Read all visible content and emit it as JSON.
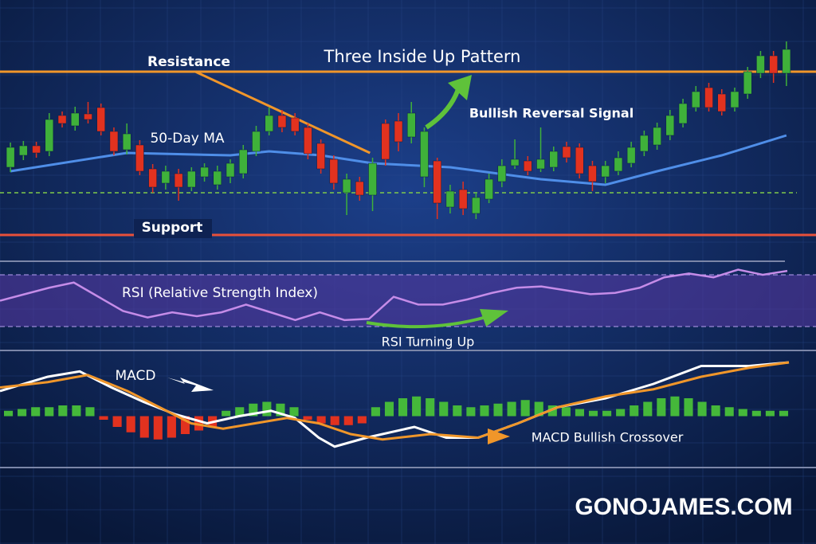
{
  "chart_data": [
    {
      "type": "candlestick",
      "title": "Three Inside Up Pattern",
      "xlim": [
        -0.5,
        60.5
      ],
      "ylim": [
        0,
        260
      ],
      "up_color": "#3fb13a",
      "down_color": "#e2321f",
      "open": [
        90,
        105,
        117,
        110,
        155,
        142,
        157,
        165,
        135,
        112,
        118,
        88,
        70,
        82,
        65,
        78,
        68,
        78,
        82,
        110,
        135,
        155,
        152,
        140,
        120,
        100,
        58,
        72,
        55,
        145,
        148,
        128,
        78,
        98,
        40,
        62,
        32,
        50,
        72,
        92,
        98,
        88,
        90,
        116,
        115,
        92,
        78,
        85,
        95,
        110,
        118,
        130,
        145,
        165,
        190,
        182,
        165,
        182,
        208,
        230,
        208
      ],
      "high": [
        121,
        123,
        122,
        158,
        160,
        166,
        172,
        170,
        140,
        145,
        124,
        94,
        92,
        88,
        90,
        95,
        92,
        100,
        118,
        142,
        165,
        162,
        158,
        145,
        125,
        105,
        82,
        78,
        102,
        150,
        158,
        172,
        140,
        102,
        68,
        72,
        58,
        82,
        100,
        125,
        104,
        140,
        116,
        122,
        120,
        98,
        98,
        110,
        122,
        136,
        146,
        162,
        176,
        192,
        196,
        188,
        190,
        216,
        236,
        236,
        248
      ],
      "low": [
        84,
        99,
        102,
        104,
        140,
        136,
        145,
        130,
        105,
        106,
        80,
        58,
        62,
        48,
        60,
        72,
        62,
        70,
        76,
        104,
        130,
        134,
        130,
        100,
        82,
        62,
        30,
        48,
        35,
        92,
        110,
        120,
        65,
        25,
        32,
        30,
        25,
        45,
        65,
        88,
        80,
        84,
        85,
        96,
        76,
        60,
        70,
        80,
        90,
        104,
        112,
        124,
        140,
        160,
        160,
        155,
        160,
        176,
        202,
        196,
        192
      ],
      "close": [
        115,
        117,
        108,
        150,
        145,
        158,
        150,
        135,
        110,
        132,
        85,
        65,
        85,
        65,
        85,
        90,
        85,
        95,
        112,
        135,
        155,
        140,
        135,
        107,
        88,
        70,
        75,
        55,
        95,
        100,
        122,
        158,
        135,
        45,
        60,
        38,
        52,
        75,
        92,
        100,
        85,
        100,
        110,
        102,
        82,
        72,
        92,
        102,
        115,
        130,
        140,
        155,
        170,
        185,
        165,
        160,
        185,
        210,
        230,
        208,
        238
      ],
      "series": [
        {
          "name": "50-Day MA",
          "color": "#4f8ee8",
          "x": [
            0,
            9,
            17,
            20,
            24,
            28,
            34,
            41,
            46,
            50,
            55,
            60
          ],
          "values": [
            85,
            108,
            105,
            110,
            105,
            95,
            90,
            75,
            68,
            85,
            105,
            130
          ]
        }
      ],
      "levels": [
        {
          "name": "Resistance",
          "value": 210,
          "color": "#f0962a"
        },
        {
          "name": "Support",
          "value": 5,
          "color": "#e8503a"
        }
      ],
      "dashed_levels": [
        58
      ],
      "trendline": {
        "color": "#f0962a",
        "x": [
          14.3,
          27.8
        ],
        "values": [
          210,
          108
        ]
      },
      "annotations": [
        "Bullish Reversal Signal"
      ]
    },
    {
      "type": "line",
      "title": "RSI (Relative Strength Index)",
      "ylim": [
        0,
        100
      ],
      "band": [
        30,
        70
      ],
      "color": "#c58ce8",
      "values": [
        50,
        55,
        60,
        64,
        53,
        42,
        37,
        41,
        38,
        41,
        47,
        41,
        35,
        41,
        35,
        36,
        53,
        47,
        47,
        51,
        56,
        60,
        61,
        58,
        55,
        56,
        60,
        68,
        71,
        68,
        74,
        70,
        73
      ],
      "annotations": [
        "RSI Turning Up"
      ]
    },
    {
      "type": "macd",
      "title": "MACD",
      "xlim": [
        0,
        1024
      ],
      "ylim": [
        -3,
        3
      ],
      "up_color": "#45b83a",
      "down_color": "#e2321f",
      "histogram": [
        0.3,
        0.4,
        0.5,
        0.5,
        0.6,
        0.6,
        0.5,
        -0.2,
        -0.6,
        -0.9,
        -1.2,
        -1.3,
        -1.2,
        -1.0,
        -0.8,
        -0.6,
        0.3,
        0.5,
        0.7,
        0.8,
        0.7,
        0.5,
        -0.2,
        -0.4,
        -0.5,
        -0.5,
        -0.4,
        0.5,
        0.8,
        1.0,
        1.1,
        1.0,
        0.8,
        0.6,
        0.5,
        0.6,
        0.7,
        0.8,
        0.9,
        0.8,
        0.6,
        0.5,
        0.4,
        0.3,
        0.3,
        0.4,
        0.6,
        0.8,
        1.0,
        1.1,
        1.0,
        0.8,
        0.6,
        0.5,
        0.4,
        0.3,
        0.3,
        0.3
      ],
      "series": [
        {
          "color": "#ffffff",
          "x": [
            0,
            60,
            100,
            140,
            180,
            220,
            260,
            300,
            340,
            370,
            400,
            420,
            460,
            520,
            560,
            600,
            650,
            700,
            760,
            820,
            880,
            940,
            990
          ],
          "values": [
            1.4,
            2.2,
            2.5,
            1.6,
            0.8,
            0.1,
            -0.4,
            0,
            0.3,
            -0.1,
            -1.2,
            -1.7,
            -1.2,
            -0.6,
            -1.2,
            -1.2,
            -0.4,
            0.5,
            1.0,
            1.8,
            2.8,
            2.8,
            3.0
          ]
        },
        {
          "color": "#f0962a",
          "x": [
            0,
            60,
            110,
            160,
            200,
            240,
            280,
            320,
            360,
            400,
            440,
            480,
            540,
            600,
            650,
            700,
            760,
            820,
            880,
            940,
            990
          ],
          "values": [
            1.6,
            1.9,
            2.3,
            1.4,
            0.5,
            -0.4,
            -0.7,
            -0.4,
            -0.1,
            -0.4,
            -1.0,
            -1.3,
            -1.0,
            -1.2,
            -0.4,
            0.5,
            1.1,
            1.5,
            2.2,
            2.7,
            3.0
          ]
        }
      ],
      "annotations": [
        "MACD Bullish Crossover"
      ]
    }
  ],
  "watermark": "GONOJAMES.COM"
}
